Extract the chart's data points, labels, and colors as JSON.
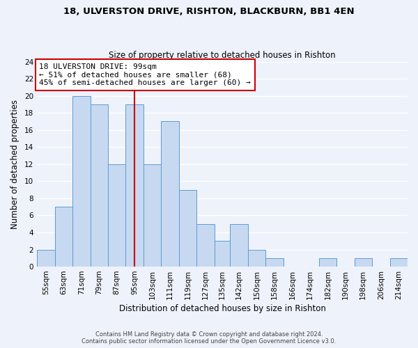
{
  "title1": "18, ULVERSTON DRIVE, RISHTON, BLACKBURN, BB1 4EN",
  "title2": "Size of property relative to detached houses in Rishton",
  "xlabel": "Distribution of detached houses by size in Rishton",
  "ylabel": "Number of detached properties",
  "bin_labels": [
    "55sqm",
    "63sqm",
    "71sqm",
    "79sqm",
    "87sqm",
    "95sqm",
    "103sqm",
    "111sqm",
    "119sqm",
    "127sqm",
    "135sqm",
    "142sqm",
    "150sqm",
    "158sqm",
    "166sqm",
    "174sqm",
    "182sqm",
    "190sqm",
    "198sqm",
    "206sqm",
    "214sqm"
  ],
  "bin_left_edges": [
    55,
    63,
    71,
    79,
    87,
    95,
    103,
    111,
    119,
    127,
    135,
    142,
    150,
    158,
    166,
    174,
    182,
    190,
    198,
    206,
    214
  ],
  "bin_right_edges": [
    63,
    71,
    79,
    87,
    95,
    103,
    111,
    119,
    127,
    135,
    142,
    150,
    158,
    166,
    174,
    182,
    190,
    198,
    206,
    214,
    222
  ],
  "counts": [
    2,
    7,
    20,
    19,
    12,
    19,
    12,
    17,
    9,
    5,
    3,
    5,
    2,
    1,
    0,
    0,
    1,
    0,
    1,
    0,
    1
  ],
  "bar_color": "#c7d9f0",
  "bar_edge_color": "#5b9bd5",
  "vline_color": "#cc0000",
  "vline_x": 99,
  "annotation_line1": "18 ULVERSTON DRIVE: 99sqm",
  "annotation_line2": "← 51% of detached houses are smaller (68)",
  "annotation_line3": "45% of semi-detached houses are larger (60) →",
  "annotation_box_color": "white",
  "annotation_box_edge_color": "#cc0000",
  "ylim": [
    0,
    24
  ],
  "yticks": [
    0,
    2,
    4,
    6,
    8,
    10,
    12,
    14,
    16,
    18,
    20,
    22,
    24
  ],
  "footer1": "Contains HM Land Registry data © Crown copyright and database right 2024.",
  "footer2": "Contains public sector information licensed under the Open Government Licence v3.0.",
  "background_color": "#eef2fa",
  "plot_bg_color": "#eef2fa",
  "grid_color": "white",
  "title1_fontsize": 9.5,
  "title2_fontsize": 8.5,
  "axis_label_fontsize": 8.5,
  "tick_fontsize": 7.5,
  "footer_fontsize": 6.0,
  "annotation_fontsize": 8.0
}
